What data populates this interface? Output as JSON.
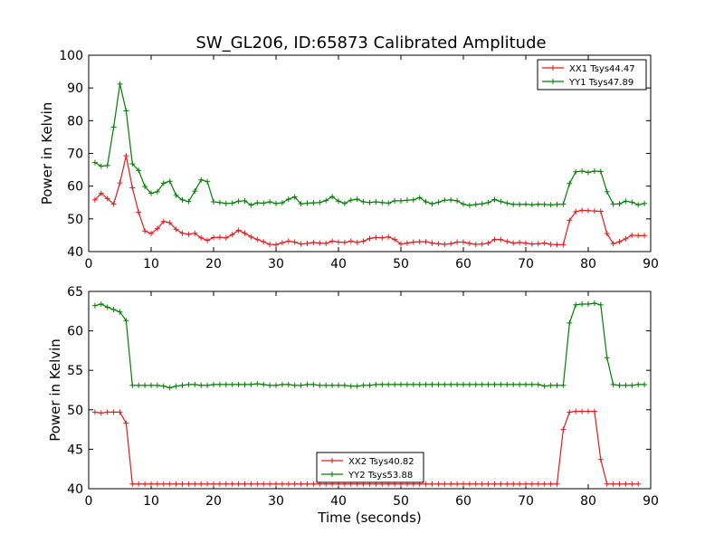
{
  "chart_data": [
    {
      "type": "line",
      "title": "SW_GL206, ID:65873 Calibrated Amplitude",
      "xlabel": "",
      "ylabel": "Power in Kelvin",
      "xlim": [
        0,
        90
      ],
      "ylim": [
        40,
        100
      ],
      "xticks": [
        0,
        10,
        20,
        30,
        40,
        50,
        60,
        70,
        80,
        90
      ],
      "yticks": [
        40,
        50,
        60,
        70,
        80,
        90,
        100
      ],
      "grid": false,
      "legend": "top-right",
      "x_start": 1,
      "series": [
        {
          "name": "XX1 Tsys44.47",
          "color": "#e41a1c",
          "values": [
            55.8,
            57.8,
            56.2,
            54.5,
            61.0,
            69.3,
            59.5,
            52.0,
            46.3,
            45.5,
            47.0,
            49.2,
            48.8,
            46.8,
            45.6,
            45.3,
            45.6,
            44.2,
            43.4,
            44.3,
            44.4,
            44.2,
            45.2,
            46.5,
            45.6,
            44.5,
            43.7,
            43.0,
            42.2,
            42.1,
            42.7,
            43.2,
            42.9,
            42.3,
            42.5,
            42.8,
            42.6,
            42.5,
            43.2,
            42.9,
            42.8,
            43.2,
            42.8,
            43.2,
            44.0,
            44.3,
            44.2,
            44.5,
            43.7,
            42.3,
            42.6,
            42.9,
            43.0,
            43.0,
            42.6,
            42.4,
            42.2,
            42.4,
            42.9,
            42.9,
            42.5,
            42.2,
            42.3,
            42.6,
            43.7,
            43.7,
            43.1,
            42.6,
            42.8,
            42.6,
            42.3,
            42.4,
            42.6,
            42.2,
            42.1,
            42.1,
            49.5,
            52.2,
            52.6,
            52.5,
            52.4,
            52.3,
            45.5,
            42.4,
            43.0,
            43.9,
            45.0,
            44.9,
            44.9
          ]
        },
        {
          "name": "YY1 Tsys47.89",
          "color": "#008000",
          "values": [
            67.2,
            66.1,
            66.3,
            78.0,
            91.2,
            83.0,
            66.8,
            64.8,
            59.9,
            57.8,
            58.3,
            60.9,
            61.5,
            57.2,
            55.8,
            55.3,
            58.5,
            61.9,
            61.4,
            55.2,
            55.0,
            54.7,
            54.8,
            55.4,
            55.5,
            54.2,
            54.9,
            54.8,
            55.2,
            54.7,
            54.9,
            56.0,
            56.7,
            54.6,
            54.8,
            54.9,
            55.0,
            55.6,
            56.8,
            55.4,
            54.7,
            55.7,
            56.0,
            55.2,
            55.0,
            55.2,
            55.0,
            54.8,
            55.5,
            55.5,
            55.7,
            55.8,
            56.5,
            55.2,
            54.6,
            55.1,
            55.7,
            55.8,
            55.5,
            54.5,
            54.1,
            54.4,
            54.6,
            55.0,
            55.9,
            55.3,
            54.8,
            54.4,
            54.4,
            54.5,
            54.3,
            54.5,
            54.4,
            54.3,
            54.4,
            54.5,
            60.8,
            64.4,
            64.6,
            64.2,
            64.6,
            64.5,
            58.3,
            54.5,
            54.6,
            55.4,
            55.1,
            54.3,
            54.7
          ]
        }
      ]
    },
    {
      "type": "line",
      "title": "",
      "xlabel": "Time (seconds)",
      "ylabel": "Power in Kelvin",
      "xlim": [
        0,
        90
      ],
      "ylim": [
        40,
        65
      ],
      "xticks": [
        0,
        10,
        20,
        30,
        40,
        50,
        60,
        70,
        80,
        90
      ],
      "yticks": [
        40,
        45,
        50,
        55,
        60,
        65
      ],
      "grid": false,
      "legend": "lower-center",
      "x_start": 1,
      "series": [
        {
          "name": "XX2 Tsys40.82",
          "color": "#e41a1c",
          "values": [
            49.7,
            49.6,
            49.7,
            49.7,
            49.7,
            48.3,
            40.6,
            40.6,
            40.6,
            40.6,
            40.6,
            40.6,
            40.6,
            40.6,
            40.6,
            40.6,
            40.6,
            40.6,
            40.6,
            40.6,
            40.6,
            40.6,
            40.6,
            40.6,
            40.6,
            40.6,
            40.6,
            40.6,
            40.6,
            40.6,
            40.6,
            40.6,
            40.6,
            40.6,
            40.6,
            40.6,
            40.6,
            40.6,
            40.6,
            40.6,
            40.6,
            40.6,
            40.6,
            40.6,
            40.6,
            40.6,
            40.6,
            40.6,
            40.6,
            40.6,
            40.6,
            40.6,
            40.6,
            40.6,
            40.6,
            40.6,
            40.6,
            40.6,
            40.6,
            40.6,
            40.6,
            40.6,
            40.6,
            40.6,
            40.6,
            40.6,
            40.6,
            40.6,
            40.6,
            40.6,
            40.6,
            40.6,
            40.6,
            40.6,
            40.6,
            47.5,
            49.7,
            49.8,
            49.8,
            49.8,
            49.8,
            43.7,
            40.6,
            40.6,
            40.6,
            40.6,
            40.6,
            40.6
          ]
        },
        {
          "name": "YY2 Tsys53.88",
          "color": "#008000",
          "values": [
            63.2,
            63.4,
            63.0,
            62.7,
            62.4,
            61.3,
            53.1,
            53.1,
            53.1,
            53.1,
            53.1,
            53.0,
            52.8,
            53.0,
            53.1,
            53.2,
            53.2,
            53.1,
            53.1,
            53.2,
            53.2,
            53.2,
            53.2,
            53.2,
            53.2,
            53.2,
            53.3,
            53.2,
            53.1,
            53.1,
            53.2,
            53.2,
            53.1,
            53.1,
            53.2,
            53.2,
            53.1,
            53.1,
            53.1,
            53.1,
            53.1,
            53.0,
            53.0,
            53.1,
            53.1,
            53.2,
            53.2,
            53.2,
            53.2,
            53.2,
            53.2,
            53.2,
            53.2,
            53.2,
            53.2,
            53.2,
            53.2,
            53.2,
            53.2,
            53.2,
            53.2,
            53.2,
            53.2,
            53.2,
            53.2,
            53.2,
            53.2,
            53.2,
            53.2,
            53.2,
            53.2,
            53.2,
            53.0,
            53.1,
            53.1,
            53.1,
            61.0,
            63.3,
            63.4,
            63.4,
            63.5,
            63.3,
            56.6,
            53.2,
            53.1,
            53.1,
            53.1,
            53.2,
            53.2
          ]
        }
      ]
    }
  ]
}
